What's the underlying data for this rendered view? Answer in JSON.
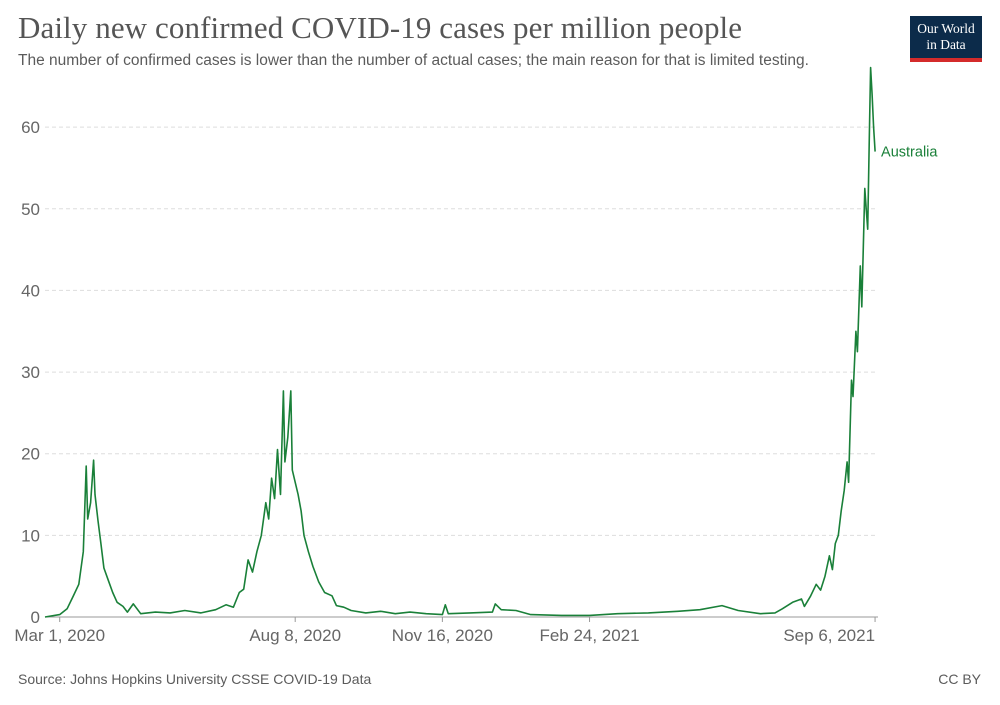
{
  "header": {
    "title": "Daily new confirmed COVID-19 cases per million people",
    "subtitle": "The number of confirmed cases is lower than the number of actual cases; the main reason for that is limited testing."
  },
  "logo": {
    "line1": "Our World",
    "line2": "in Data",
    "background": "#0c2b4a",
    "accent": "#d42b2b"
  },
  "footer": {
    "source": "Source: Johns Hopkins University CSSE COVID-19 Data",
    "license": "CC BY"
  },
  "chart_data": {
    "type": "line",
    "title": "Daily new confirmed COVID-19 cases per million people",
    "subtitle": "The number of confirmed cases is lower than the number of actual cases; the main reason for that is limited testing.",
    "xlabel": "",
    "ylabel": "",
    "x_ticks": [
      "Mar 1, 2020",
      "Aug 8, 2020",
      "Nov 16, 2020",
      "Feb 24, 2021",
      "Sep 6, 2021"
    ],
    "y_ticks": [
      0,
      10,
      20,
      30,
      40,
      50,
      60
    ],
    "ylim": [
      0,
      67
    ],
    "xlim": [
      "2020-02-20",
      "2021-09-08"
    ],
    "grid": "horizontal dashed",
    "series": [
      {
        "name": "Australia",
        "color": "#1a8039",
        "points": [
          [
            "2020-02-20",
            0
          ],
          [
            "2020-03-01",
            0.3
          ],
          [
            "2020-03-06",
            1
          ],
          [
            "2020-03-10",
            2.5
          ],
          [
            "2020-03-14",
            4
          ],
          [
            "2020-03-17",
            8
          ],
          [
            "2020-03-19",
            18.5
          ],
          [
            "2020-03-20",
            12
          ],
          [
            "2020-03-22",
            14
          ],
          [
            "2020-03-24",
            19.2
          ],
          [
            "2020-03-25",
            15
          ],
          [
            "2020-03-27",
            11.8
          ],
          [
            "2020-03-29",
            9
          ],
          [
            "2020-03-31",
            6
          ],
          [
            "2020-04-03",
            4.5
          ],
          [
            "2020-04-06",
            3
          ],
          [
            "2020-04-09",
            1.8
          ],
          [
            "2020-04-13",
            1.3
          ],
          [
            "2020-04-16",
            0.6
          ],
          [
            "2020-04-20",
            1.6
          ],
          [
            "2020-04-25",
            0.4
          ],
          [
            "2020-05-05",
            0.6
          ],
          [
            "2020-05-15",
            0.5
          ],
          [
            "2020-05-25",
            0.8
          ],
          [
            "2020-06-05",
            0.5
          ],
          [
            "2020-06-15",
            0.9
          ],
          [
            "2020-06-22",
            1.5
          ],
          [
            "2020-06-27",
            1.2
          ],
          [
            "2020-07-01",
            3
          ],
          [
            "2020-07-04",
            3.4
          ],
          [
            "2020-07-07",
            7
          ],
          [
            "2020-07-10",
            5.5
          ],
          [
            "2020-07-13",
            8
          ],
          [
            "2020-07-16",
            10
          ],
          [
            "2020-07-19",
            14
          ],
          [
            "2020-07-21",
            12
          ],
          [
            "2020-07-23",
            17
          ],
          [
            "2020-07-25",
            14.5
          ],
          [
            "2020-07-27",
            20.5
          ],
          [
            "2020-07-29",
            15
          ],
          [
            "2020-07-31",
            27.7
          ],
          [
            "2020-08-01",
            19
          ],
          [
            "2020-08-03",
            22
          ],
          [
            "2020-08-05",
            27.7
          ],
          [
            "2020-08-06",
            18
          ],
          [
            "2020-08-08",
            16.5
          ],
          [
            "2020-08-10",
            15
          ],
          [
            "2020-08-12",
            13
          ],
          [
            "2020-08-14",
            10
          ],
          [
            "2020-08-17",
            8
          ],
          [
            "2020-08-20",
            6.2
          ],
          [
            "2020-08-24",
            4.3
          ],
          [
            "2020-08-28",
            3
          ],
          [
            "2020-09-02",
            2.6
          ],
          [
            "2020-09-05",
            1.4
          ],
          [
            "2020-09-10",
            1.2
          ],
          [
            "2020-09-15",
            0.8
          ],
          [
            "2020-09-25",
            0.5
          ],
          [
            "2020-10-05",
            0.7
          ],
          [
            "2020-10-15",
            0.4
          ],
          [
            "2020-10-25",
            0.6
          ],
          [
            "2020-11-05",
            0.4
          ],
          [
            "2020-11-16",
            0.3
          ],
          [
            "2020-11-18",
            1.5
          ],
          [
            "2020-11-20",
            0.4
          ],
          [
            "2020-12-05",
            0.5
          ],
          [
            "2020-12-20",
            0.6
          ],
          [
            "2020-12-22",
            1.6
          ],
          [
            "2020-12-26",
            0.9
          ],
          [
            "2021-01-05",
            0.8
          ],
          [
            "2021-01-15",
            0.3
          ],
          [
            "2021-02-05",
            0.2
          ],
          [
            "2021-02-24",
            0.2
          ],
          [
            "2021-03-15",
            0.4
          ],
          [
            "2021-04-05",
            0.5
          ],
          [
            "2021-04-25",
            0.7
          ],
          [
            "2021-05-10",
            0.9
          ],
          [
            "2021-05-25",
            1.4
          ],
          [
            "2021-06-05",
            0.8
          ],
          [
            "2021-06-20",
            0.4
          ],
          [
            "2021-06-30",
            0.5
          ],
          [
            "2021-07-05",
            1
          ],
          [
            "2021-07-12",
            1.8
          ],
          [
            "2021-07-18",
            2.2
          ],
          [
            "2021-07-20",
            1.3
          ],
          [
            "2021-07-24",
            2.5
          ],
          [
            "2021-07-28",
            4
          ],
          [
            "2021-07-31",
            3.3
          ],
          [
            "2021-08-03",
            5
          ],
          [
            "2021-08-06",
            7.5
          ],
          [
            "2021-08-08",
            5.8
          ],
          [
            "2021-08-10",
            9
          ],
          [
            "2021-08-12",
            10
          ],
          [
            "2021-08-14",
            13
          ],
          [
            "2021-08-16",
            15.5
          ],
          [
            "2021-08-18",
            19
          ],
          [
            "2021-08-19",
            16.5
          ],
          [
            "2021-08-21",
            29
          ],
          [
            "2021-08-22",
            27
          ],
          [
            "2021-08-24",
            35
          ],
          [
            "2021-08-25",
            32.5
          ],
          [
            "2021-08-27",
            43
          ],
          [
            "2021-08-28",
            38
          ],
          [
            "2021-08-30",
            52.5
          ],
          [
            "2021-08-31",
            50
          ],
          [
            "2021-09-01",
            47.5
          ],
          [
            "2021-09-02",
            58
          ],
          [
            "2021-09-03",
            67.3
          ],
          [
            "2021-09-04",
            64
          ],
          [
            "2021-09-05",
            60
          ],
          [
            "2021-09-06",
            57
          ]
        ]
      }
    ]
  }
}
